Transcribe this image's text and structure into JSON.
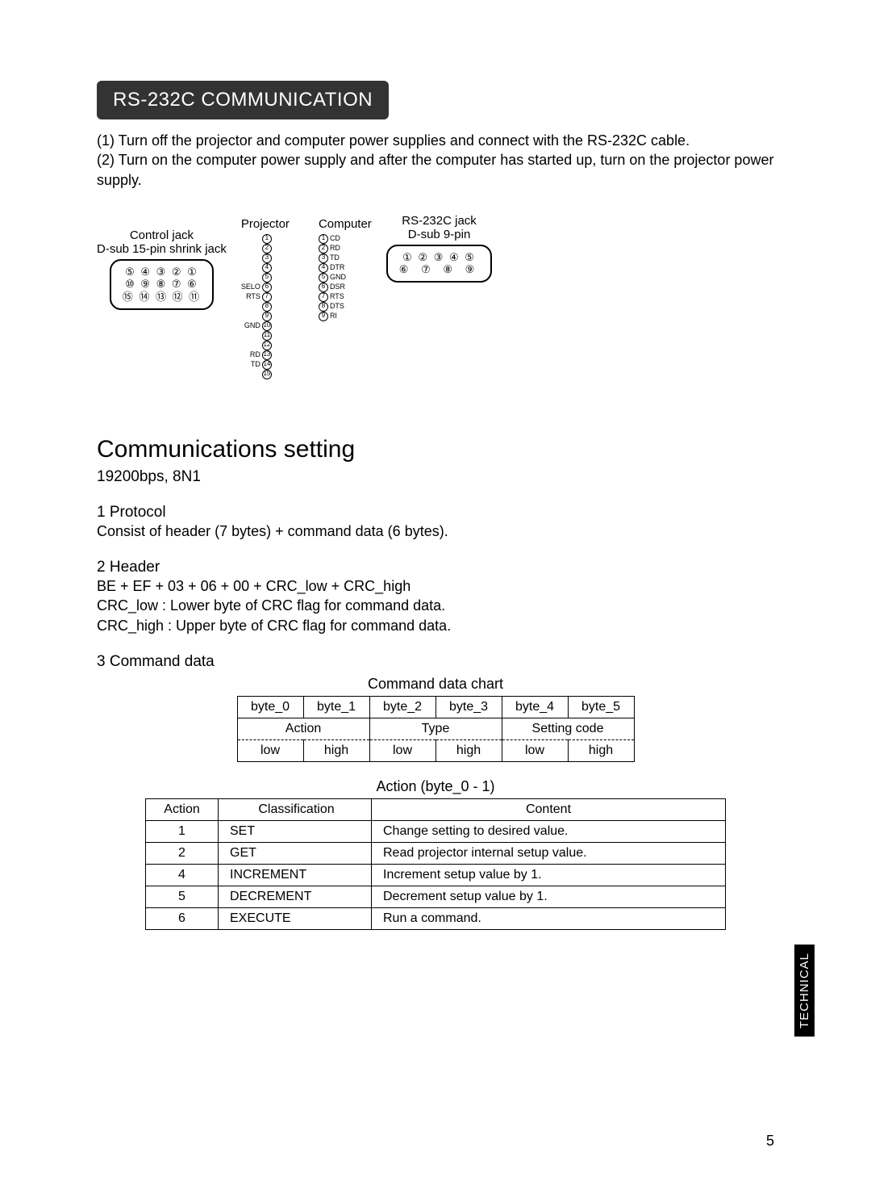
{
  "title": "RS-232C COMMUNICATION",
  "intro": {
    "line1": "(1) Turn off the projector and computer power supplies and connect with the RS-232C cable.",
    "line2": "(2) Turn on the computer power supply and after the computer has started up, turn on the projector power supply."
  },
  "diagram": {
    "control_jack_label": "Control jack",
    "control_jack_sub": "D-sub 15-pin shrink jack",
    "control_jack_rows": [
      "⑤ ④ ③ ② ①",
      "⑩ ⑨ ⑧ ⑦ ⑥",
      "⑮ ⑭ ⑬ ⑫ ⑪"
    ],
    "projector_label": "Projector",
    "computer_label": "Computer",
    "rs232_label": "RS-232C jack",
    "rs232_sub": "D-sub 9-pin",
    "rs232_rows": [
      "① ② ③ ④ ⑤",
      "⑥ ⑦ ⑧ ⑨"
    ],
    "projector_pins": [
      {
        "n": "1",
        "l": ""
      },
      {
        "n": "2",
        "l": ""
      },
      {
        "n": "3",
        "l": ""
      },
      {
        "n": "4",
        "l": ""
      },
      {
        "n": "5",
        "l": ""
      },
      {
        "n": "6",
        "l": "SELO"
      },
      {
        "n": "7",
        "l": "RTS"
      },
      {
        "n": "8",
        "l": ""
      },
      {
        "n": "9",
        "l": ""
      },
      {
        "n": "10",
        "l": "GND"
      },
      {
        "n": "11",
        "l": ""
      },
      {
        "n": "12",
        "l": ""
      },
      {
        "n": "13",
        "l": "RD"
      },
      {
        "n": "14",
        "l": "TD"
      },
      {
        "n": "15",
        "l": ""
      }
    ],
    "computer_pins": [
      {
        "n": "1",
        "l": "CD"
      },
      {
        "n": "2",
        "l": "RD"
      },
      {
        "n": "3",
        "l": "TD"
      },
      {
        "n": "4",
        "l": "DTR"
      },
      {
        "n": "5",
        "l": "GND"
      },
      {
        "n": "6",
        "l": "DSR"
      },
      {
        "n": "7",
        "l": "RTS"
      },
      {
        "n": "8",
        "l": "DTS"
      },
      {
        "n": "9",
        "l": "RI"
      }
    ]
  },
  "comms": {
    "heading": "Communications setting",
    "rate": "19200bps,  8N1",
    "sec1_h": "1 Protocol",
    "sec1_b": "Consist of header (7 bytes) + command data (6 bytes).",
    "sec2_h": "2 Header",
    "sec2_b1": "BE + EF + 03 + 06 + 00 + CRC_low + CRC_high",
    "sec2_b2": "CRC_low : Lower byte of CRC flag for command data.",
    "sec2_b3": "CRC_high : Upper byte of CRC flag for command data.",
    "sec3_h": "3 Command data"
  },
  "cmd_chart": {
    "title": "Command data chart",
    "cols": [
      "byte_0",
      "byte_1",
      "byte_2",
      "byte_3",
      "byte_4",
      "byte_5"
    ],
    "groups": [
      "Action",
      "Type",
      "Setting code"
    ],
    "lowhigh": [
      "low",
      "high",
      "low",
      "high",
      "low",
      "high"
    ]
  },
  "action_chart": {
    "title": "Action (byte_0 - 1)",
    "headers": [
      "Action",
      "Classification",
      "Content"
    ],
    "rows": [
      [
        "1",
        "SET",
        "Change setting to desired value."
      ],
      [
        "2",
        "GET",
        "Read projector internal setup value."
      ],
      [
        "4",
        "INCREMENT",
        "Increment setup value by 1."
      ],
      [
        "5",
        "DECREMENT",
        "Decrement setup value by 1."
      ],
      [
        "6",
        "EXECUTE",
        "Run a command."
      ]
    ]
  },
  "sidebar": "TECHNICAL",
  "page_number": "5"
}
